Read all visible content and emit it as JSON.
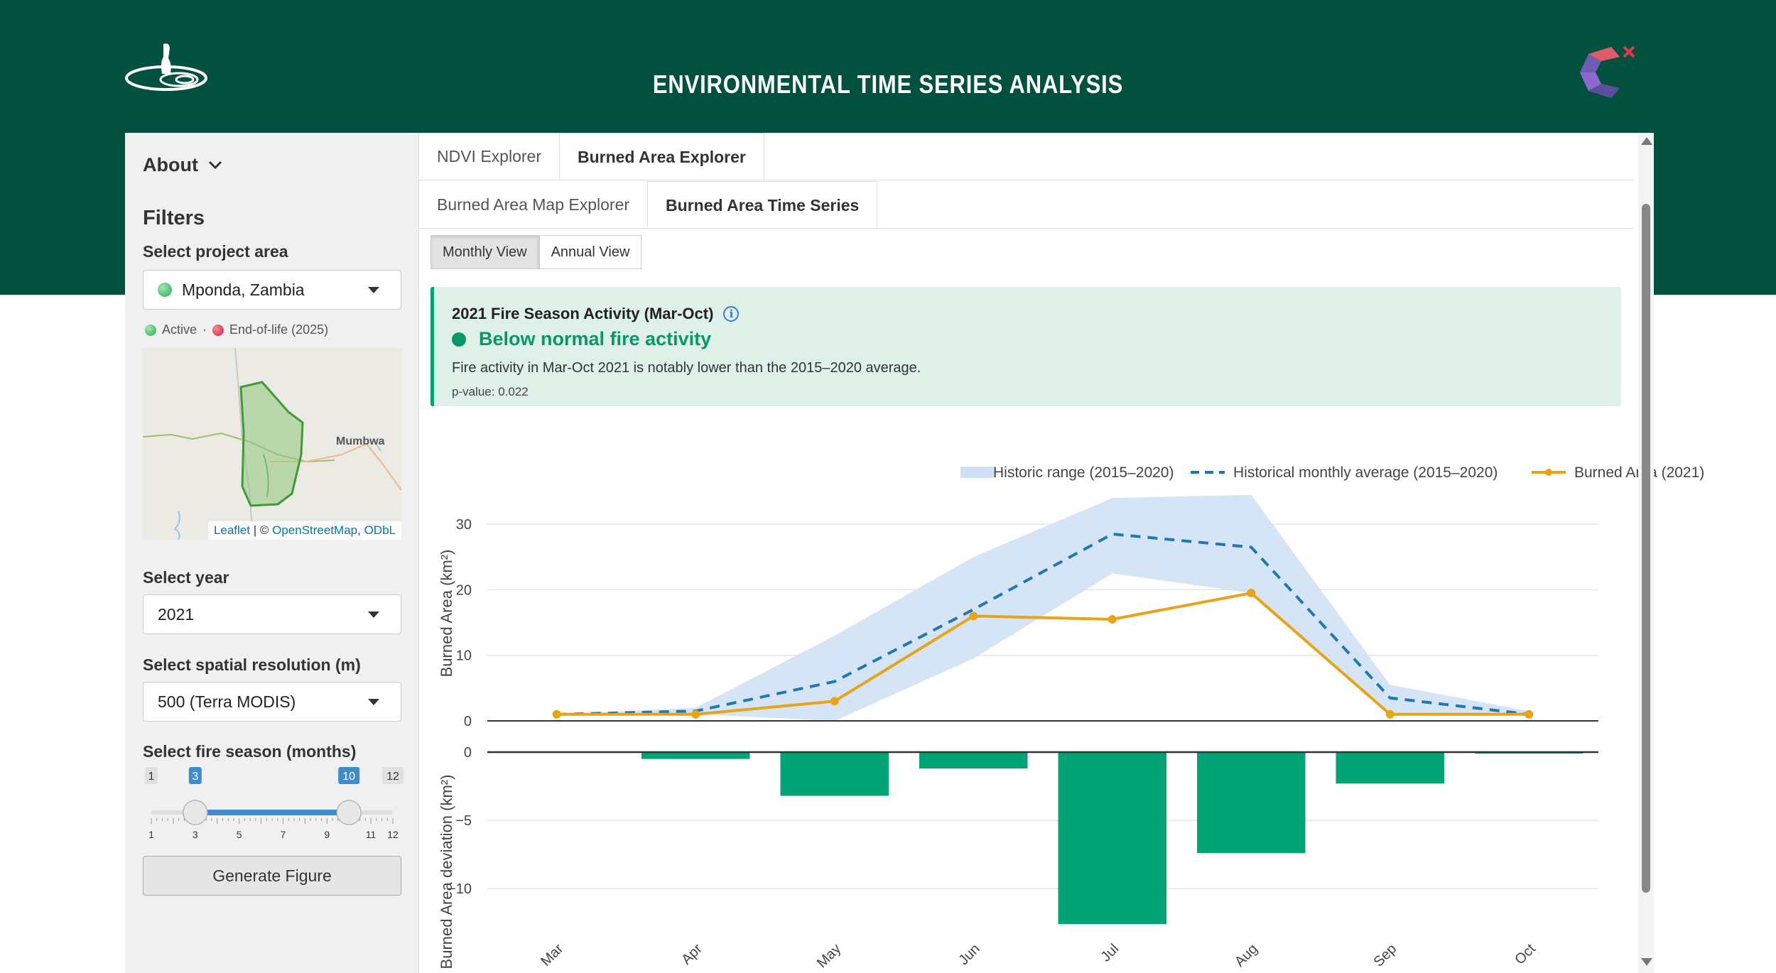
{
  "header": {
    "title": "ENVIRONMENTAL TIME SERIES ANALYSIS"
  },
  "sidebar": {
    "about_label": "About",
    "filters_title": "Filters",
    "project": {
      "label": "Select project area",
      "value": "Mponda, Zambia"
    },
    "legend": {
      "active": "Active",
      "separator": "·",
      "eol": "End-of-life (2025)"
    },
    "map": {
      "place_label": "Mumbwa",
      "attr_leaflet": "Leaflet",
      "attr_sep": " | © ",
      "attr_osm": "OpenStreetMap",
      "attr_comma": ", ",
      "attr_odbl": "ODbL"
    },
    "year": {
      "label": "Select year",
      "value": "2021"
    },
    "resolution": {
      "label": "Select spatial resolution (m)",
      "value": "500 (Terra MODIS)"
    },
    "season": {
      "label": "Select fire season (months)",
      "min": 1,
      "max": 12,
      "from": 3,
      "to": 10,
      "ticks": [
        "1",
        "3",
        "5",
        "7",
        "9",
        "11",
        "12"
      ]
    },
    "generate_label": "Generate Figure"
  },
  "tabs": {
    "primary": [
      "NDVI Explorer",
      "Burned Area Explorer"
    ],
    "secondary": [
      "Burned Area Map Explorer",
      "Burned Area Time Series"
    ]
  },
  "view_buttons": [
    "Monthly View",
    "Annual View"
  ],
  "alert": {
    "title": "2021 Fire Season Activity (Mar-Oct)",
    "info_icon": "i",
    "status": "Below normal fire activity",
    "description": "Fire activity in Mar-Oct 2021 is notably lower than the 2015–2020 average.",
    "pvalue": "p-value: 0.022",
    "color": "#08976b"
  },
  "chart_data": [
    {
      "type": "line",
      "categories": [
        "Mar",
        "Apr",
        "May",
        "Jun",
        "Jul",
        "Aug",
        "Sep",
        "Oct"
      ],
      "ylabel": "Burned Area (km²)",
      "ylim": [
        0,
        35
      ],
      "yticks": [
        "0",
        "10",
        "20",
        "30"
      ],
      "legend_position": "top-right",
      "series": [
        {
          "name": "Historic range (2015–2020)",
          "kind": "band",
          "low": [
            1,
            1,
            0,
            9.5,
            22.5,
            19.5,
            1,
            1
          ],
          "high": [
            1,
            2,
            13,
            25,
            34,
            34.5,
            5.5,
            1.5
          ],
          "color": "#cfe0f5"
        },
        {
          "name": "Historical monthly average (2015–2020)",
          "kind": "dashed",
          "values": [
            1,
            1.5,
            6,
            17,
            28.5,
            26.5,
            3.5,
            1
          ],
          "color": "#1f77b4"
        },
        {
          "name": "Burned Area (2021)",
          "kind": "line+markers",
          "values": [
            1,
            1,
            3,
            16,
            15.5,
            19.5,
            1,
            1
          ],
          "color": "#e8a317"
        }
      ],
      "grid": true
    },
    {
      "type": "bar",
      "categories": [
        "Mar",
        "Apr",
        "May",
        "Jun",
        "Jul",
        "Aug",
        "Sep",
        "Oct"
      ],
      "ylabel": "Burned Area deviation (km²)",
      "ylim": [
        -12.8,
        0
      ],
      "yticks": [
        "0",
        "−5",
        "−10"
      ],
      "values": [
        0,
        -0.5,
        -3.2,
        -1.2,
        -12.6,
        -7.4,
        -2.3,
        -0.1
      ],
      "color": "#02a374",
      "grid": true
    }
  ]
}
